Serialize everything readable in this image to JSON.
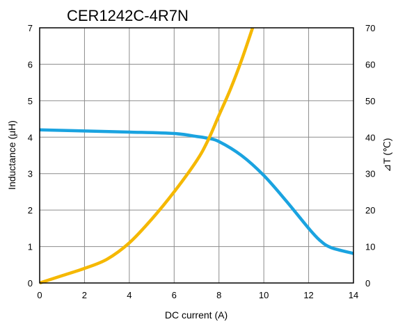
{
  "chart_data": {
    "type": "line",
    "title": "CER1242C-4R7N",
    "xlabel": "DC current (A)",
    "ylabel_left": "Inductance (μH)",
    "ylabel_right": "⊿T (℃)",
    "xlim": [
      0,
      14
    ],
    "ylim_left": [
      0,
      7
    ],
    "ylim_right": [
      0,
      70
    ],
    "x_ticks": [
      "0",
      "2",
      "4",
      "6",
      "8",
      "10",
      "12",
      "14"
    ],
    "y_left_ticks": [
      "0",
      "1",
      "2",
      "3",
      "4",
      "5",
      "6",
      "7"
    ],
    "y_right_ticks": [
      "0",
      "10",
      "20",
      "30",
      "40",
      "50",
      "60",
      "70"
    ],
    "grid": true,
    "series": [
      {
        "axis": "left",
        "color": "#1aa3e0",
        "x": [
          0,
          2,
          4,
          6,
          7,
          7.5,
          8,
          9,
          10,
          11,
          12,
          12.5,
          13,
          14
        ],
        "values": [
          4.2,
          4.17,
          4.14,
          4.1,
          4.02,
          3.97,
          3.88,
          3.5,
          2.95,
          2.25,
          1.5,
          1.17,
          0.97,
          0.81
        ]
      },
      {
        "axis": "right",
        "color": "#f5b800",
        "x": [
          0,
          1,
          2,
          3,
          4,
          5,
          6,
          7,
          7.5,
          8,
          8.5,
          9,
          9.5
        ],
        "values": [
          0,
          2,
          4,
          6.5,
          11,
          17.5,
          25,
          33.5,
          39,
          46,
          53,
          61,
          70
        ]
      }
    ]
  }
}
